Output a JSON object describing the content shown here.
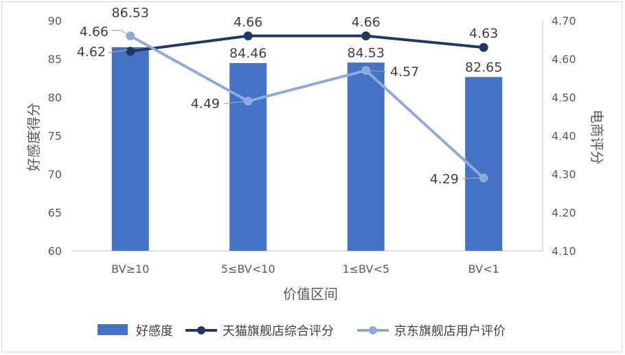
{
  "chart_data": {
    "type": "bar+line",
    "categories": [
      "BV≥10",
      "5≤BV<10",
      "1≤BV<5",
      "BV<1"
    ],
    "xlabel": "价值区间",
    "ylabel": "好感度得分",
    "y2label": "电商评分",
    "ylim": [
      60,
      90
    ],
    "yticks": [
      "60",
      "65",
      "70",
      "75",
      "80",
      "85",
      "90"
    ],
    "y2lim": [
      4.1,
      4.7
    ],
    "y2ticks": [
      "4.10",
      "4.20",
      "4.30",
      "4.40",
      "4.50",
      "4.60",
      "4.70"
    ],
    "grid": false,
    "legend_position": "bottom",
    "series": [
      {
        "name": "好感度",
        "type": "bar",
        "axis": "left",
        "color": "#4472C4",
        "values": [
          86.53,
          84.46,
          84.53,
          82.65
        ],
        "labels": [
          "86.53",
          "84.46",
          "84.53",
          "82.65"
        ]
      },
      {
        "name": "天猫旗舰店综合评分",
        "type": "line",
        "axis": "right",
        "color": "#1F3864",
        "values": [
          4.62,
          4.66,
          4.66,
          4.63
        ],
        "labels": [
          "4.62",
          "4.66",
          "4.66",
          "4.63"
        ]
      },
      {
        "name": "京东旗舰店用户评价",
        "type": "line",
        "axis": "right",
        "color": "#8EA9DB",
        "values": [
          4.66,
          4.49,
          4.57,
          4.29
        ],
        "labels": [
          "4.66",
          "4.49",
          "4.57",
          "4.29"
        ]
      }
    ]
  }
}
